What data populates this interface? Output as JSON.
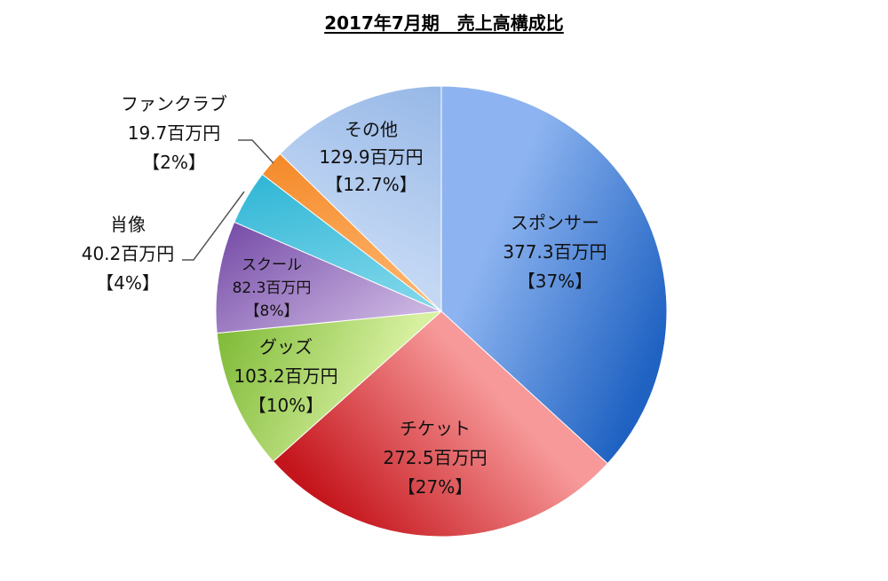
{
  "chart_data": {
    "type": "pie",
    "title": "2017年7月期　売上高構成比",
    "slices": [
      {
        "name": "スポンサー",
        "value": 377.3,
        "value_text": "377.3百万円",
        "pct_text": "【37%】",
        "color_light": "#8db4f0",
        "color_dark": "#1f62c2"
      },
      {
        "name": "チケット",
        "value": 272.5,
        "value_text": "272.5百万円",
        "pct_text": "【27%】",
        "color_light": "#f79999",
        "color_dark": "#c4151c"
      },
      {
        "name": "グッズ",
        "value": 103.2,
        "value_text": "103.2百万円",
        "pct_text": "【10%】",
        "color_light": "#d7f0a0",
        "color_dark": "#76b52c"
      },
      {
        "name": "スクール",
        "value": 82.3,
        "value_text": "82.3百万円",
        "pct_text": "【8%】",
        "color_light": "#c9b2e0",
        "color_dark": "#6b3fa0"
      },
      {
        "name": "肖像",
        "value": 40.2,
        "value_text": "40.2百万円",
        "pct_text": "【4%】",
        "color_light": "#7fd6ea",
        "color_dark": "#1aaed0"
      },
      {
        "name": "ファンクラブ",
        "value": 19.7,
        "value_text": "19.7百万円",
        "pct_text": "【2%】",
        "color_light": "#ffb36b",
        "color_dark": "#f07a10"
      },
      {
        "name": "その他",
        "value": 129.9,
        "value_text": "129.9百万円",
        "pct_text": "【12.7%】",
        "color_light": "#c4d8f4",
        "color_dark": "#94b6e6"
      }
    ]
  }
}
